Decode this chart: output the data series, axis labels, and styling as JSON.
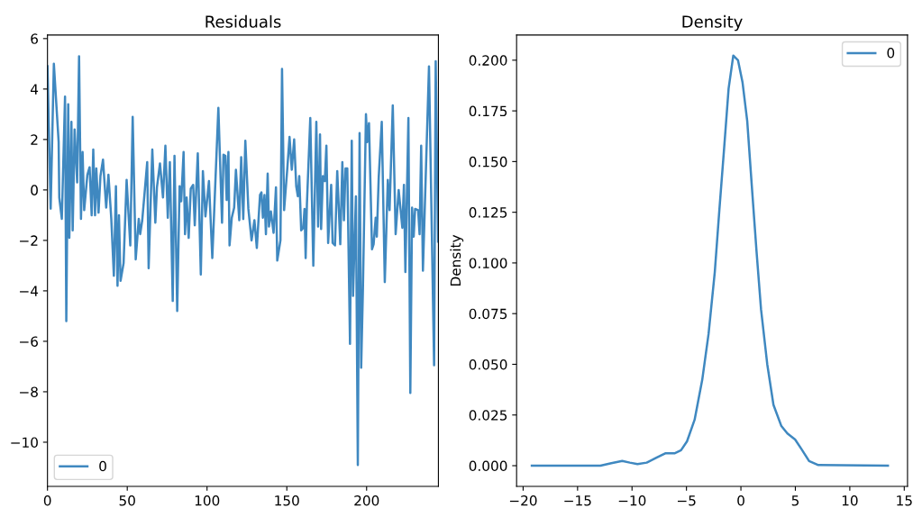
{
  "chart_data": [
    {
      "type": "line",
      "title": "Residuals",
      "legend": "lower left",
      "xlim": [
        0,
        245
      ],
      "ylim": [
        -11.75,
        6.14
      ],
      "xticks": [
        0,
        50,
        100,
        150,
        200
      ],
      "yticks": [
        {
          "value": -10,
          "label": "−10"
        },
        {
          "value": -8,
          "label": "−8"
        },
        {
          "value": -6,
          "label": "−6"
        },
        {
          "value": -4,
          "label": "−4"
        },
        {
          "value": -2,
          "label": "−2"
        },
        0,
        2,
        4,
        6
      ],
      "series": [
        {
          "name": "0",
          "color": "#3f88c0",
          "x": [
            0,
            2,
            4,
            7,
            7.4,
            9,
            11,
            11.8,
            13,
            13.7,
            15,
            15.8,
            17,
            18.6,
            19.8,
            21,
            22,
            23,
            25,
            26.4,
            27.7,
            28.7,
            29.8,
            30.6,
            32,
            33.2,
            34.8,
            36.8,
            38.2,
            40,
            41.6,
            42.9,
            43.9,
            44.8,
            45.8,
            47.7,
            49.6,
            51.9,
            53.4,
            55.3,
            57.2,
            58.1,
            59.4,
            62.5,
            63.4,
            65.7,
            67.6,
            68.6,
            70.5,
            72.4,
            73.9,
            75.4,
            76.7,
            78.5,
            79.6,
            81.3,
            82.8,
            83.8,
            85.3,
            86.2,
            87.2,
            88.5,
            89.8,
            91.3,
            92.3,
            94.2,
            96.1,
            97.4,
            99,
            101.2,
            103.3,
            107.1,
            109.4,
            110.3,
            111.5,
            112.3,
            113.4,
            114.1,
            115.5,
            117,
            118.1,
            120.2,
            121.4,
            122.7,
            124,
            125.9,
            127.9,
            129.7,
            131.2,
            133.2,
            134.1,
            135,
            136,
            136.9,
            138,
            138.8,
            140,
            141.7,
            143.2,
            144,
            146,
            147,
            148.3,
            150.3,
            151.7,
            153.1,
            154.6,
            155.9,
            156.9,
            157.8,
            159,
            160.3,
            161.1,
            161.8,
            162.6,
            164.7,
            166.6,
            168.5,
            169.6,
            170.8,
            171.5,
            172.6,
            173.8,
            174.8,
            175.9,
            177.8,
            178.7,
            180.2,
            181.6,
            183.5,
            184.8,
            185.8,
            186.8,
            187.9,
            189.6,
            190.7,
            191.5,
            193.3,
            194.5,
            195.6,
            196.6,
            197.7,
            199.6,
            200.4,
            201.5,
            203.4,
            204.4,
            205.7,
            206.4,
            207.6,
            209.5,
            211.4,
            213.3,
            214.4,
            216.4,
            218.2,
            220.1,
            222.4,
            223.4,
            224.3,
            226.2,
            227.4,
            228.5,
            229.5,
            230.4,
            232.3,
            233.2,
            234.2,
            235.3,
            239.1,
            242.3,
            243.3,
            244.8
          ],
          "values": [
            4.9,
            -0.74,
            5.0,
            1.9,
            -0.3,
            -1.15,
            3.7,
            -5.2,
            3.4,
            -1.9,
            2.7,
            -1.6,
            2.4,
            0.3,
            5.3,
            -1.15,
            1.5,
            -0.8,
            0.6,
            0.9,
            -1.0,
            1.6,
            -1.0,
            0.85,
            -0.9,
            0.55,
            1.2,
            -0.7,
            0.6,
            -1.15,
            -3.4,
            0.15,
            -3.8,
            -1.0,
            -3.6,
            -2.9,
            0.4,
            -2.2,
            2.9,
            -2.75,
            -1.15,
            -1.75,
            -1.2,
            1.1,
            -3.1,
            1.6,
            -1.3,
            0.1,
            1.05,
            -0.3,
            1.75,
            -1.1,
            1.1,
            -4.4,
            1.35,
            -4.8,
            0.15,
            -0.45,
            1.5,
            -1.75,
            -0.3,
            -1.9,
            0.05,
            0.2,
            -1.4,
            1.45,
            -3.35,
            0.75,
            -1.05,
            0.35,
            -2.7,
            3.25,
            -1.3,
            1.4,
            1.35,
            -0.4,
            1.5,
            -2.2,
            -1.1,
            -0.7,
            0.8,
            -1.2,
            1.3,
            -1.15,
            1.95,
            -0.75,
            -2.0,
            -1.2,
            -2.3,
            -0.2,
            -0.1,
            -1.1,
            -0.2,
            -1.75,
            0.65,
            -1.45,
            -0.85,
            -1.7,
            0.1,
            -2.8,
            -2.0,
            4.8,
            -0.8,
            0.85,
            2.1,
            0.8,
            2.0,
            0.15,
            -0.25,
            0.55,
            -1.6,
            -1.5,
            -0.75,
            -2.7,
            -0.55,
            2.85,
            -3.0,
            2.7,
            -1.45,
            2.2,
            -1.55,
            0.55,
            0.35,
            1.75,
            -2.1,
            0.2,
            -2.1,
            -2.2,
            0.75,
            -2.15,
            1.1,
            -1.2,
            0.85,
            0.85,
            -6.1,
            1.95,
            -4.2,
            -0.25,
            -10.9,
            2.25,
            -7.05,
            -3.9,
            3.0,
            1.9,
            2.65,
            -2.35,
            -2.15,
            -1.1,
            -1.85,
            0.5,
            2.7,
            -3.65,
            0.4,
            -0.8,
            3.35,
            -1.75,
            0.0,
            -1.5,
            0.2,
            -3.25,
            2.85,
            -8.05,
            -0.7,
            -1.85,
            -0.75,
            -0.8,
            -1.75,
            1.75,
            -3.2,
            4.9,
            -6.95,
            5.1,
            -2.05
          ]
        }
      ]
    },
    {
      "type": "line",
      "title": "Density",
      "ylabel": "Density",
      "legend": "upper right",
      "xlim": [
        -20.6,
        15.3
      ],
      "ylim": [
        -0.0102,
        0.2124
      ],
      "xticks": [
        {
          "value": -20,
          "label": "−20"
        },
        {
          "value": -15,
          "label": "−15"
        },
        {
          "value": -10,
          "label": "−10"
        },
        {
          "value": -5,
          "label": "−5"
        },
        0,
        5,
        10,
        15
      ],
      "yticks": [
        {
          "value": 0,
          "label": "0.000"
        },
        {
          "value": 0.025,
          "label": "0.025"
        },
        {
          "value": 0.05,
          "label": "0.050"
        },
        {
          "value": 0.075,
          "label": "0.075"
        },
        {
          "value": 0.1,
          "label": "0.100"
        },
        {
          "value": 0.125,
          "label": "0.125"
        },
        {
          "value": 0.15,
          "label": "0.150"
        },
        {
          "value": 0.175,
          "label": "0.175"
        },
        {
          "value": 0.2,
          "label": "0.200"
        }
      ],
      "series": [
        {
          "name": "0",
          "color": "#3f88c0",
          "x": [
            -19.2,
            -12.9,
            -11.9,
            -10.9,
            -10.2,
            -9.5,
            -8.65,
            -7.8,
            -6.95,
            -6.1,
            -5.5,
            -4.95,
            -4.25,
            -3.55,
            -2.97,
            -2.4,
            -1.98,
            -1.55,
            -1.13,
            -0.7,
            -0.27,
            0.15,
            0.58,
            1.0,
            1.43,
            1.85,
            2.42,
            2.99,
            3.7,
            4.27,
            4.98,
            5.55,
            6.26,
            7.11,
            13.5
          ],
          "values": [
            0,
            0,
            0.0012,
            0.0023,
            0.0015,
            0.0008,
            0.0015,
            0.0038,
            0.0061,
            0.0061,
            0.0076,
            0.012,
            0.0227,
            0.0424,
            0.065,
            0.0955,
            0.126,
            0.156,
            0.186,
            0.2023,
            0.2,
            0.189,
            0.17,
            0.138,
            0.106,
            0.077,
            0.05,
            0.03,
            0.0197,
            0.0159,
            0.0129,
            0.0083,
            0.0023,
            0.0003,
            0
          ]
        }
      ]
    }
  ]
}
